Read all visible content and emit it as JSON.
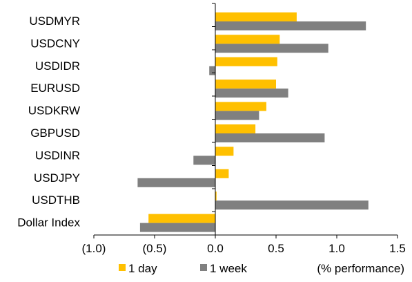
{
  "chart_data": {
    "type": "bar",
    "orientation": "horizontal",
    "categories": [
      "USDMYR",
      "USDCNY",
      "USDIDR",
      "EURUSD",
      "USDKRW",
      "GBPUSD",
      "USDINR",
      "USDJPY",
      "USDTHB",
      "Dollar Index"
    ],
    "series": [
      {
        "name": "1 day",
        "color": "#FFC000",
        "values": [
          0.67,
          0.53,
          0.51,
          0.5,
          0.42,
          0.33,
          0.15,
          0.11,
          0.01,
          -0.55
        ]
      },
      {
        "name": "1 week",
        "color": "#808080",
        "values": [
          1.24,
          0.93,
          -0.05,
          0.6,
          0.36,
          0.9,
          -0.18,
          -0.64,
          1.26,
          -0.62
        ]
      }
    ],
    "xlim": [
      -1.0,
      1.5
    ],
    "xticks": [
      -1.0,
      -0.5,
      0.0,
      0.5,
      1.0,
      1.5
    ],
    "xtick_labels": [
      "(1.0)",
      "(0.5)",
      "0.0",
      "0.5",
      "1.0",
      "1.5"
    ],
    "xlabel": "(% performance)",
    "legend_position": "bottom",
    "grid": false
  }
}
